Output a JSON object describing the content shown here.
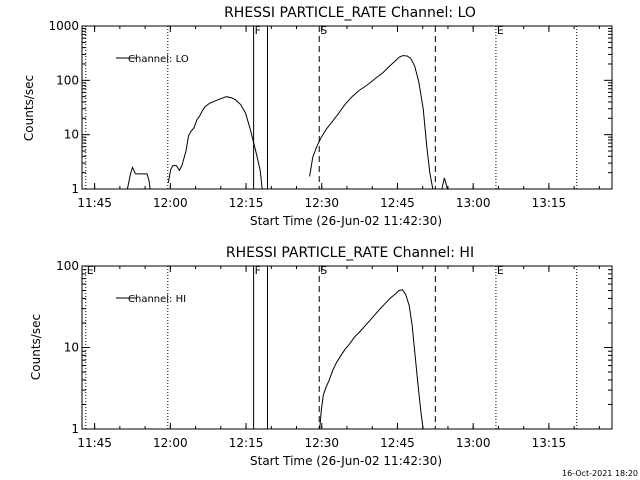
{
  "chart_data": [
    {
      "type": "line",
      "title": "RHESSI PARTICLE_RATE Channel: LO",
      "xlabel": "Start Time (26-Jun-02 11:42:30)",
      "ylabel": "Counts/sec",
      "yscale": "log",
      "ylim": [
        1,
        1000
      ],
      "xlim": [
        "11:42:30",
        "13:27:30"
      ],
      "x_ticks": [
        "11:45",
        "12:00",
        "12:15",
        "12:30",
        "12:45",
        "13:00",
        "13:15"
      ],
      "y_ticks": [
        "1",
        "10",
        "100",
        "1000"
      ],
      "legend": {
        "label": "Channel: LO",
        "placement": "top-left"
      },
      "event_markers": [
        {
          "label": "",
          "time": "11:43:15",
          "style": "dotted"
        },
        {
          "label": "",
          "time": "11:59:30",
          "style": "dotted"
        },
        {
          "label": "F",
          "time": "12:16:30",
          "style": "solid"
        },
        {
          "label": "",
          "time": "12:19:15",
          "style": "solid"
        },
        {
          "label": "S",
          "time": "12:29:30",
          "style": "dashed"
        },
        {
          "label": "",
          "time": "12:52:30",
          "style": "dashed"
        },
        {
          "label": "E",
          "time": "13:04:30",
          "style": "dotted"
        },
        {
          "label": "",
          "time": "13:20:30",
          "style": "dotted"
        }
      ],
      "series": [
        {
          "name": "Channel: LO",
          "segments": [
            {
              "t": [
                9.0,
                9.6,
                10.0,
                10.6,
                11.2,
                12.0,
                12.9,
                13.3,
                13.5,
                13.8
              ],
              "y": [
                1,
                1.9,
                2.5,
                1.9,
                1.9,
                1.9,
                1.9,
                1.4,
                1,
                1
              ]
            },
            {
              "t": [
                17.1,
                17.6,
                18.0,
                18.7,
                19.3,
                19.8,
                20.6,
                21.1,
                21.6,
                22.2,
                22.8,
                23.3,
                23.9,
                24.4,
                25.3,
                26.4,
                27.5,
                28.6,
                29.6,
                30.4,
                31.4,
                32.4,
                33.4,
                34.6,
                35.3,
                35.7
              ],
              "y": [
                1.3,
                2.3,
                2.7,
                2.7,
                2.2,
                2.7,
                5,
                9.5,
                11.5,
                13.5,
                19,
                22,
                28,
                33,
                38,
                42,
                46,
                50,
                48,
                44,
                36,
                25,
                12,
                4.3,
                2.2,
                1
              ]
            },
            {
              "t": [
                45.1,
                45.7,
                46.5,
                47.4,
                48.5,
                49.7,
                50.9,
                52.1,
                53.5,
                54.9,
                56.5,
                58.2,
                59.7,
                61.0,
                62.0,
                62.8,
                63.6,
                64.4,
                65.1,
                65.9,
                66.7,
                67.6,
                68.3,
                68.9,
                69.5
              ],
              "y": [
                1.7,
                3.8,
                6,
                9,
                13,
                18,
                25,
                36,
                50,
                65,
                82,
                110,
                140,
                185,
                225,
                265,
                285,
                280,
                255,
                185,
                95,
                30,
                6,
                2,
                1
              ]
            },
            {
              "t": [
                71.3,
                71.8,
                72.4
              ],
              "y": [
                1,
                1.6,
                1
              ]
            }
          ]
        }
      ]
    },
    {
      "type": "line",
      "title": "RHESSI PARTICLE_RATE Channel: HI",
      "xlabel": "Start Time (26-Jun-02 11:42:30)",
      "ylabel": "Counts/sec",
      "yscale": "log",
      "ylim": [
        1,
        100
      ],
      "xlim": [
        "11:42:30",
        "13:27:30"
      ],
      "x_ticks": [
        "11:45",
        "12:00",
        "12:15",
        "12:30",
        "12:45",
        "13:00",
        "13:15"
      ],
      "y_ticks": [
        "1",
        "10",
        "100"
      ],
      "legend": {
        "label": "Channel: HI",
        "placement": "top-left"
      },
      "event_markers": [
        {
          "label": "E",
          "time": "11:43:15",
          "style": "dotted"
        },
        {
          "label": "",
          "time": "11:59:30",
          "style": "dotted"
        },
        {
          "label": "F",
          "time": "12:16:30",
          "style": "solid"
        },
        {
          "label": "",
          "time": "12:19:15",
          "style": "solid"
        },
        {
          "label": "S",
          "time": "12:29:30",
          "style": "dashed"
        },
        {
          "label": "",
          "time": "12:52:30",
          "style": "dashed"
        },
        {
          "label": "E",
          "time": "13:04:30",
          "style": "dotted"
        },
        {
          "label": "",
          "time": "13:20:30",
          "style": "dotted"
        }
      ],
      "series": [
        {
          "name": "Channel: HI",
          "segments": [
            {
              "t": [
                47.1,
                47.4,
                47.8,
                48.3,
                49.0,
                49.7,
                50.4,
                51.2,
                52.1,
                53.0,
                54.0,
                55.0,
                56.1,
                57.2,
                58.2,
                59.3,
                60.3,
                61.2,
                62.2,
                62.8,
                63.5,
                64.1,
                64.8,
                65.4,
                66.0,
                66.6,
                67.2,
                67.6
              ],
              "y": [
                1,
                1.7,
                2.6,
                3.2,
                4,
                5.3,
                6.5,
                7.8,
                9.5,
                11,
                13.5,
                15.5,
                18.5,
                22,
                26,
                31,
                36,
                41,
                46,
                50,
                51,
                45,
                33,
                19,
                8,
                3.3,
                1.5,
                1
              ]
            }
          ]
        }
      ]
    }
  ],
  "footer": {
    "date_stamp": "16-Oct-2021 18:20"
  }
}
